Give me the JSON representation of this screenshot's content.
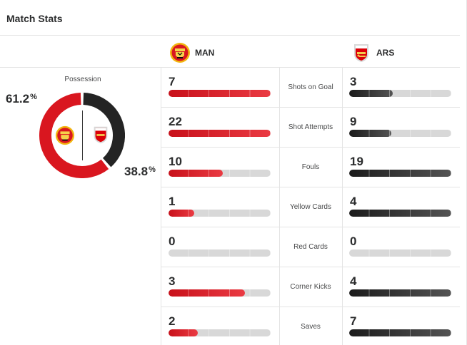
{
  "title": "Match Stats",
  "teams": {
    "home": {
      "abbr": "MAN",
      "crest": "manchester-united-crest",
      "color": "#d9161f"
    },
    "away": {
      "abbr": "ARS",
      "crest": "arsenal-crest",
      "color": "#242424"
    }
  },
  "possession": {
    "label": "Possession",
    "home_value": "61.2",
    "away_value": "38.8",
    "pct_symbol": "%",
    "home_fraction": 0.612,
    "away_fraction": 0.388
  },
  "stats": [
    {
      "label": "Shots on Goal",
      "home": "7",
      "away": "3",
      "home_fraction": 1.0,
      "away_fraction": 0.43
    },
    {
      "label": "Shot Attempts",
      "home": "22",
      "away": "9",
      "home_fraction": 1.0,
      "away_fraction": 0.41
    },
    {
      "label": "Fouls",
      "home": "10",
      "away": "19",
      "home_fraction": 0.53,
      "away_fraction": 1.0
    },
    {
      "label": "Yellow Cards",
      "home": "1",
      "away": "4",
      "home_fraction": 0.25,
      "away_fraction": 1.0
    },
    {
      "label": "Red Cards",
      "home": "0",
      "away": "0",
      "home_fraction": 0,
      "away_fraction": 0
    },
    {
      "label": "Corner Kicks",
      "home": "3",
      "away": "4",
      "home_fraction": 0.75,
      "away_fraction": 1.0
    },
    {
      "label": "Saves",
      "home": "2",
      "away": "7",
      "home_fraction": 0.29,
      "away_fraction": 1.0
    }
  ]
}
